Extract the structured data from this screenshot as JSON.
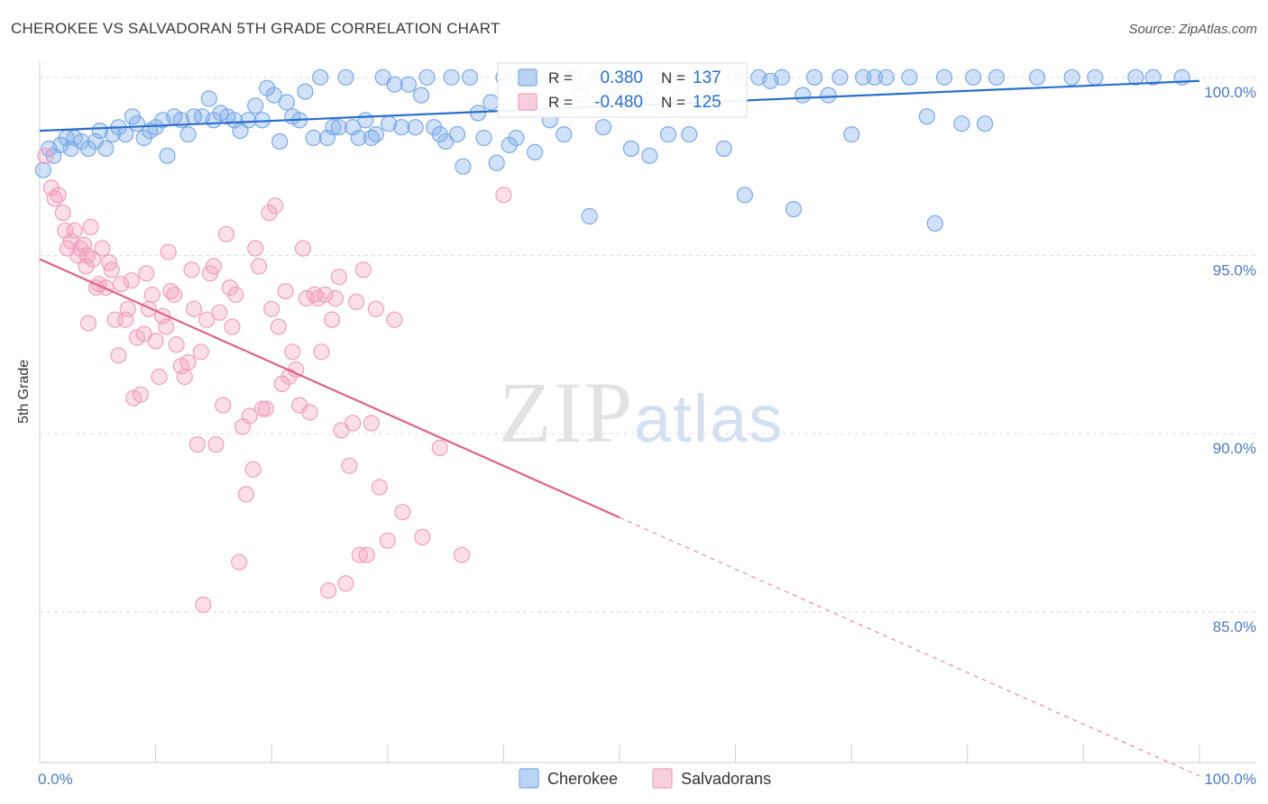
{
  "chart_data": {
    "type": "scatter",
    "title": "CHEROKEE VS SALVADORAN 5TH GRADE CORRELATION CHART",
    "source": "Source: ZipAtlas.com",
    "xlabel": "",
    "ylabel": "5th Grade",
    "xlim": [
      0,
      100
    ],
    "ylim": [
      80.8,
      100.4
    ],
    "x_tick_labels": [
      "0.0%",
      "100.0%"
    ],
    "y_ticks": [
      {
        "value": 100,
        "label": "100.0%"
      },
      {
        "value": 95,
        "label": "95.0%"
      },
      {
        "value": 90,
        "label": "90.0%"
      },
      {
        "value": 85,
        "label": "85.0%"
      }
    ],
    "watermark": "ZIPatlas",
    "legend": {
      "r_label": "R =",
      "n_label": "N =",
      "rows": [
        {
          "r": "0.380",
          "n": "137"
        },
        {
          "r": "-0.480",
          "n": "125"
        }
      ]
    },
    "series": [
      {
        "name": "Cherokee",
        "color": "#7aaae8",
        "line_color": "#2a6fcc",
        "trend": {
          "x": [
            0,
            100
          ],
          "y": [
            98.5,
            99.9
          ],
          "dashed_from": null
        },
        "points": [
          [
            0.3,
            97.4
          ],
          [
            0.8,
            98.0
          ],
          [
            1.2,
            97.8
          ],
          [
            1.8,
            98.1
          ],
          [
            2.3,
            98.3
          ],
          [
            2.7,
            98.0
          ],
          [
            3.0,
            98.3
          ],
          [
            3.6,
            98.2
          ],
          [
            4.2,
            98.0
          ],
          [
            4.8,
            98.2
          ],
          [
            5.2,
            98.5
          ],
          [
            5.7,
            98.0
          ],
          [
            6.3,
            98.4
          ],
          [
            6.8,
            98.6
          ],
          [
            7.4,
            98.4
          ],
          [
            8.0,
            98.9
          ],
          [
            8.4,
            98.7
          ],
          [
            9.0,
            98.3
          ],
          [
            9.5,
            98.5
          ],
          [
            10.0,
            98.6
          ],
          [
            10.6,
            98.8
          ],
          [
            11.0,
            97.8
          ],
          [
            11.6,
            98.9
          ],
          [
            12.2,
            98.8
          ],
          [
            12.8,
            98.4
          ],
          [
            13.3,
            98.9
          ],
          [
            14.0,
            98.9
          ],
          [
            14.6,
            99.4
          ],
          [
            15.0,
            98.8
          ],
          [
            15.6,
            99.0
          ],
          [
            16.2,
            98.9
          ],
          [
            16.8,
            98.8
          ],
          [
            17.3,
            98.5
          ],
          [
            18.0,
            98.8
          ],
          [
            18.6,
            99.2
          ],
          [
            19.2,
            98.8
          ],
          [
            19.6,
            99.7
          ],
          [
            20.2,
            99.5
          ],
          [
            20.7,
            98.2
          ],
          [
            21.3,
            99.3
          ],
          [
            21.8,
            98.9
          ],
          [
            22.4,
            98.8
          ],
          [
            22.9,
            99.6
          ],
          [
            23.6,
            98.3
          ],
          [
            24.2,
            100.0
          ],
          [
            24.8,
            98.3
          ],
          [
            25.3,
            98.6
          ],
          [
            25.8,
            98.6
          ],
          [
            26.4,
            100.0
          ],
          [
            27.0,
            98.6
          ],
          [
            27.5,
            98.3
          ],
          [
            28.1,
            98.8
          ],
          [
            28.6,
            98.3
          ],
          [
            29.0,
            98.4
          ],
          [
            29.6,
            100.0
          ],
          [
            30.1,
            98.7
          ],
          [
            30.6,
            99.8
          ],
          [
            31.2,
            98.6
          ],
          [
            31.8,
            99.8
          ],
          [
            32.4,
            98.6
          ],
          [
            32.9,
            99.5
          ],
          [
            33.4,
            100.0
          ],
          [
            34.0,
            98.6
          ],
          [
            34.5,
            98.4
          ],
          [
            35.0,
            98.2
          ],
          [
            35.5,
            100.0
          ],
          [
            36.0,
            98.4
          ],
          [
            36.5,
            97.5
          ],
          [
            37.1,
            100.0
          ],
          [
            37.8,
            99.0
          ],
          [
            38.3,
            98.3
          ],
          [
            38.9,
            99.3
          ],
          [
            39.4,
            97.6
          ],
          [
            40.0,
            100.0
          ],
          [
            40.5,
            98.1
          ],
          [
            41.1,
            98.3
          ],
          [
            41.6,
            100.0
          ],
          [
            42.2,
            99.1
          ],
          [
            42.7,
            97.9
          ],
          [
            43.3,
            100.0
          ],
          [
            44.0,
            98.8
          ],
          [
            44.6,
            100.0
          ],
          [
            45.2,
            98.4
          ],
          [
            46.0,
            100.0
          ],
          [
            46.7,
            99.5
          ],
          [
            47.4,
            96.1
          ],
          [
            48.0,
            100.0
          ],
          [
            48.6,
            98.6
          ],
          [
            49.4,
            99.7
          ],
          [
            50.2,
            100.0
          ],
          [
            51.0,
            98.0
          ],
          [
            51.8,
            99.6
          ],
          [
            52.6,
            97.8
          ],
          [
            53.4,
            100.0
          ],
          [
            54.2,
            98.4
          ],
          [
            55.0,
            99.9
          ],
          [
            56.0,
            98.4
          ],
          [
            57.0,
            100.0
          ],
          [
            58.0,
            99.8
          ],
          [
            59.0,
            98.0
          ],
          [
            60.0,
            100.0
          ],
          [
            60.8,
            96.7
          ],
          [
            62.0,
            100.0
          ],
          [
            63.0,
            99.9
          ],
          [
            64.0,
            100.0
          ],
          [
            65.0,
            96.3
          ],
          [
            65.8,
            99.5
          ],
          [
            66.8,
            100.0
          ],
          [
            68.0,
            99.5
          ],
          [
            69.0,
            100.0
          ],
          [
            70.0,
            98.4
          ],
          [
            71.0,
            100.0
          ],
          [
            72.0,
            100.0
          ],
          [
            73.0,
            100.0
          ],
          [
            75.0,
            100.0
          ],
          [
            76.5,
            98.9
          ],
          [
            77.2,
            95.9
          ],
          [
            78.0,
            100.0
          ],
          [
            79.5,
            98.7
          ],
          [
            80.5,
            100.0
          ],
          [
            81.5,
            98.7
          ],
          [
            82.5,
            100.0
          ],
          [
            86.0,
            100.0
          ],
          [
            89.0,
            100.0
          ],
          [
            91.0,
            100.0
          ],
          [
            94.5,
            100.0
          ],
          [
            96.0,
            100.0
          ],
          [
            98.5,
            100.0
          ]
        ]
      },
      {
        "name": "Salvadorans",
        "color": "#f0a0bc",
        "line_color": "#e0608a",
        "trend": {
          "x": [
            0,
            100
          ],
          "y": [
            94.9,
            80.4
          ],
          "dashed_from": 50
        },
        "points": [
          [
            0.5,
            97.8
          ],
          [
            1.0,
            96.9
          ],
          [
            1.3,
            96.6
          ],
          [
            1.6,
            96.7
          ],
          [
            2.0,
            96.2
          ],
          [
            2.2,
            95.7
          ],
          [
            2.4,
            95.2
          ],
          [
            2.7,
            95.4
          ],
          [
            3.0,
            95.7
          ],
          [
            3.3,
            95.0
          ],
          [
            3.5,
            95.2
          ],
          [
            3.8,
            95.3
          ],
          [
            4.0,
            94.7
          ],
          [
            4.1,
            95.0
          ],
          [
            4.2,
            93.1
          ],
          [
            4.4,
            95.8
          ],
          [
            4.6,
            94.9
          ],
          [
            4.9,
            94.1
          ],
          [
            5.1,
            94.2
          ],
          [
            5.4,
            95.2
          ],
          [
            5.7,
            94.1
          ],
          [
            6.0,
            94.8
          ],
          [
            6.2,
            94.6
          ],
          [
            6.5,
            93.2
          ],
          [
            6.8,
            92.2
          ],
          [
            7.0,
            94.2
          ],
          [
            7.4,
            93.2
          ],
          [
            7.6,
            93.5
          ],
          [
            7.9,
            94.3
          ],
          [
            8.1,
            91.0
          ],
          [
            8.4,
            92.7
          ],
          [
            8.7,
            91.1
          ],
          [
            9.0,
            92.8
          ],
          [
            9.2,
            94.5
          ],
          [
            9.4,
            93.5
          ],
          [
            9.7,
            93.9
          ],
          [
            10.0,
            92.6
          ],
          [
            10.3,
            91.6
          ],
          [
            10.6,
            93.3
          ],
          [
            10.9,
            93.0
          ],
          [
            11.1,
            95.1
          ],
          [
            11.3,
            94.0
          ],
          [
            11.6,
            93.9
          ],
          [
            11.8,
            92.5
          ],
          [
            12.2,
            91.9
          ],
          [
            12.5,
            91.6
          ],
          [
            12.8,
            92.0
          ],
          [
            13.1,
            94.6
          ],
          [
            13.3,
            93.5
          ],
          [
            13.6,
            89.7
          ],
          [
            13.9,
            92.3
          ],
          [
            14.1,
            85.2
          ],
          [
            14.4,
            93.2
          ],
          [
            14.7,
            94.5
          ],
          [
            15.0,
            94.7
          ],
          [
            15.2,
            89.7
          ],
          [
            15.5,
            93.4
          ],
          [
            15.8,
            90.8
          ],
          [
            16.1,
            95.6
          ],
          [
            16.4,
            94.1
          ],
          [
            16.6,
            93.0
          ],
          [
            16.9,
            93.9
          ],
          [
            17.2,
            86.4
          ],
          [
            17.5,
            90.2
          ],
          [
            17.8,
            88.3
          ],
          [
            18.1,
            90.5
          ],
          [
            18.4,
            89.0
          ],
          [
            18.6,
            95.2
          ],
          [
            18.9,
            94.7
          ],
          [
            19.2,
            90.7
          ],
          [
            19.5,
            90.7
          ],
          [
            19.8,
            96.2
          ],
          [
            20.0,
            93.5
          ],
          [
            20.3,
            96.4
          ],
          [
            20.6,
            93.0
          ],
          [
            20.9,
            91.4
          ],
          [
            21.2,
            94.0
          ],
          [
            21.5,
            91.6
          ],
          [
            21.8,
            92.3
          ],
          [
            22.1,
            91.8
          ],
          [
            22.4,
            90.8
          ],
          [
            22.7,
            95.2
          ],
          [
            23.0,
            93.8
          ],
          [
            23.3,
            90.6
          ],
          [
            23.7,
            93.9
          ],
          [
            24.0,
            93.8
          ],
          [
            24.3,
            92.3
          ],
          [
            24.6,
            93.9
          ],
          [
            24.9,
            85.6
          ],
          [
            25.2,
            93.2
          ],
          [
            25.5,
            93.8
          ],
          [
            25.8,
            94.4
          ],
          [
            26.0,
            90.1
          ],
          [
            26.4,
            85.8
          ],
          [
            26.7,
            89.1
          ],
          [
            27.0,
            90.3
          ],
          [
            27.3,
            93.7
          ],
          [
            27.6,
            86.6
          ],
          [
            27.9,
            94.6
          ],
          [
            28.2,
            86.6
          ],
          [
            28.6,
            90.3
          ],
          [
            29.0,
            93.5
          ],
          [
            29.3,
            88.5
          ],
          [
            30.0,
            87.0
          ],
          [
            30.6,
            93.2
          ],
          [
            31.3,
            87.8
          ],
          [
            33.0,
            87.1
          ],
          [
            34.5,
            89.6
          ],
          [
            36.4,
            86.6
          ],
          [
            40.0,
            96.7
          ]
        ]
      }
    ]
  }
}
